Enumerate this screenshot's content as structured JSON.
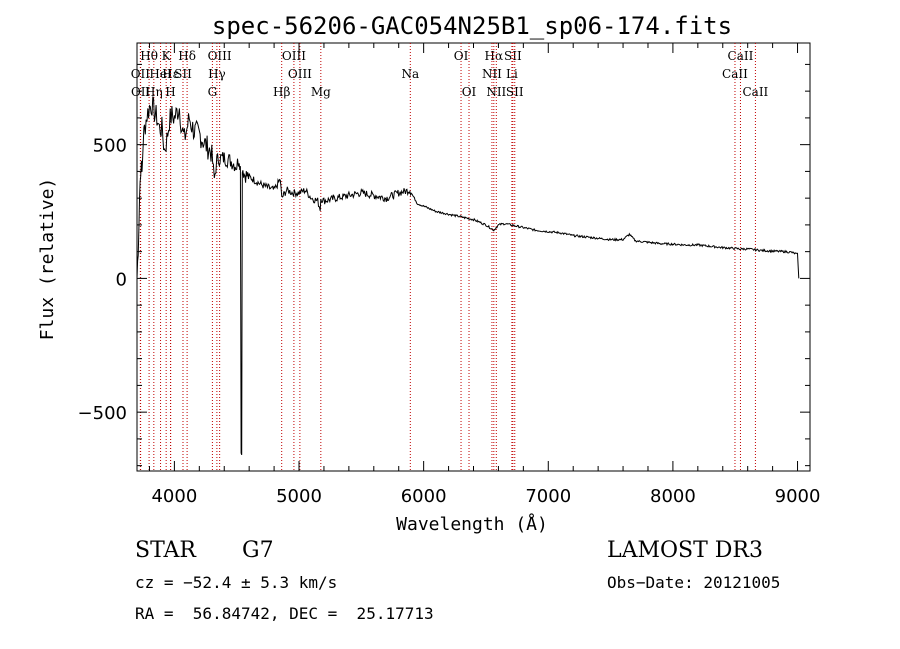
{
  "chart_data": {
    "type": "line",
    "title": "spec-56206-GAC054N25B1_sp06-174.fits",
    "xlabel": "Wavelength (Å)",
    "ylabel": "Flux (relative)",
    "xlim": [
      3700,
      9100
    ],
    "ylim": [
      -720,
      880
    ],
    "x_ticks": [
      4000,
      5000,
      6000,
      7000,
      8000,
      9000
    ],
    "y_ticks": [
      -500,
      0,
      500
    ],
    "grid": false,
    "series": [
      {
        "name": "flux",
        "x": [
          3700,
          3710,
          3720,
          3730,
          3740,
          3750,
          3760,
          3780,
          3800,
          3820,
          3840,
          3860,
          3880,
          3900,
          3920,
          3940,
          3960,
          3980,
          4000,
          4020,
          4040,
          4060,
          4080,
          4100,
          4120,
          4140,
          4160,
          4200,
          4250,
          4300,
          4320,
          4340,
          4360,
          4400,
          4450,
          4500,
          4520,
          4530,
          4535,
          4540,
          4545,
          4560,
          4600,
          4700,
          4800,
          4850,
          4861,
          4900,
          4950,
          5000,
          5050,
          5100,
          5150,
          5170,
          5175,
          5200,
          5300,
          5400,
          5500,
          5600,
          5700,
          5800,
          5890,
          5900,
          5950,
          6000,
          6050,
          6100,
          6200,
          6300,
          6400,
          6500,
          6563,
          6600,
          6650,
          6700,
          6800,
          6900,
          7000,
          7100,
          7200,
          7300,
          7400,
          7500,
          7600,
          7650,
          7700,
          7800,
          7900,
          8000,
          8100,
          8200,
          8300,
          8400,
          8500,
          8540,
          8600,
          8700,
          8800,
          8900,
          8950,
          9000,
          9010
        ],
        "values": [
          0,
          120,
          300,
          420,
          390,
          520,
          560,
          610,
          640,
          650,
          620,
          600,
          560,
          560,
          480,
          520,
          590,
          610,
          600,
          620,
          640,
          560,
          520,
          560,
          600,
          570,
          550,
          540,
          500,
          470,
          370,
          440,
          450,
          450,
          440,
          420,
          450,
          420,
          -660,
          -660,
          420,
          390,
          380,
          350,
          330,
          370,
          300,
          330,
          320,
          320,
          330,
          300,
          290,
          260,
          300,
          290,
          300,
          310,
          320,
          310,
          300,
          320,
          330,
          320,
          280,
          270,
          260,
          250,
          240,
          230,
          220,
          200,
          180,
          200,
          205,
          200,
          190,
          180,
          175,
          170,
          160,
          155,
          150,
          145,
          145,
          165,
          140,
          135,
          130,
          128,
          125,
          125,
          120,
          115,
          112,
          110,
          110,
          105,
          102,
          100,
          98,
          90,
          0
        ]
      }
    ],
    "line_marks": [
      {
        "label": "Hθ",
        "x": 3797,
        "row": 1
      },
      {
        "label": "OII",
        "x": 3727,
        "row": 2
      },
      {
        "label": "OII",
        "x": 3729,
        "row": 3
      },
      {
        "label": "K",
        "x": 3934,
        "row": 1
      },
      {
        "label": "Hε",
        "x": 3970,
        "row": 2
      },
      {
        "label": "Hη",
        "x": 3835,
        "row": 3
      },
      {
        "label": "Hδ",
        "x": 4102,
        "row": 1
      },
      {
        "label": "SII",
        "x": 4069,
        "row": 2
      },
      {
        "label": "H",
        "x": 3969,
        "row": 3
      },
      {
        "label": "OIII",
        "x": 4363,
        "row": 1
      },
      {
        "label": "Hγ",
        "x": 4341,
        "row": 2
      },
      {
        "label": "G",
        "x": 4305,
        "row": 3
      },
      {
        "label": "HeI",
        "x": 3889,
        "row": 2
      },
      {
        "label": "Hβ",
        "x": 4861,
        "row": 3
      },
      {
        "label": "OIII",
        "x": 4959,
        "row": 1
      },
      {
        "label": "OIII",
        "x": 5007,
        "row": 2
      },
      {
        "label": "Mg",
        "x": 5175,
        "row": 3
      },
      {
        "label": "Na",
        "x": 5893,
        "row": 2
      },
      {
        "label": "OI",
        "x": 6300,
        "row": 1
      },
      {
        "label": "OI",
        "x": 6364,
        "row": 3
      },
      {
        "label": "Hα",
        "x": 6563,
        "row": 1
      },
      {
        "label": "NII",
        "x": 6548,
        "row": 2
      },
      {
        "label": "NII",
        "x": 6583,
        "row": 3
      },
      {
        "label": "SII",
        "x": 6716,
        "row": 1
      },
      {
        "label": "Li",
        "x": 6708,
        "row": 2
      },
      {
        "label": "SII",
        "x": 6731,
        "row": 3
      },
      {
        "label": "CaII",
        "x": 8542,
        "row": 1
      },
      {
        "label": "CaII",
        "x": 8498,
        "row": 2
      },
      {
        "label": "CaII",
        "x": 8662,
        "row": 3
      }
    ]
  },
  "info": {
    "object_class": "STAR",
    "subclass": "G7",
    "cz": "cz = −52.4 ± 5.3 km/s",
    "coords": "RA =  56.84742, DEC =  25.17713",
    "survey": "LAMOST DR3",
    "obs_date": "Obs−Date: 20121005"
  },
  "colors": {
    "line_marker": "#c00000",
    "spectrum": "#000000"
  }
}
